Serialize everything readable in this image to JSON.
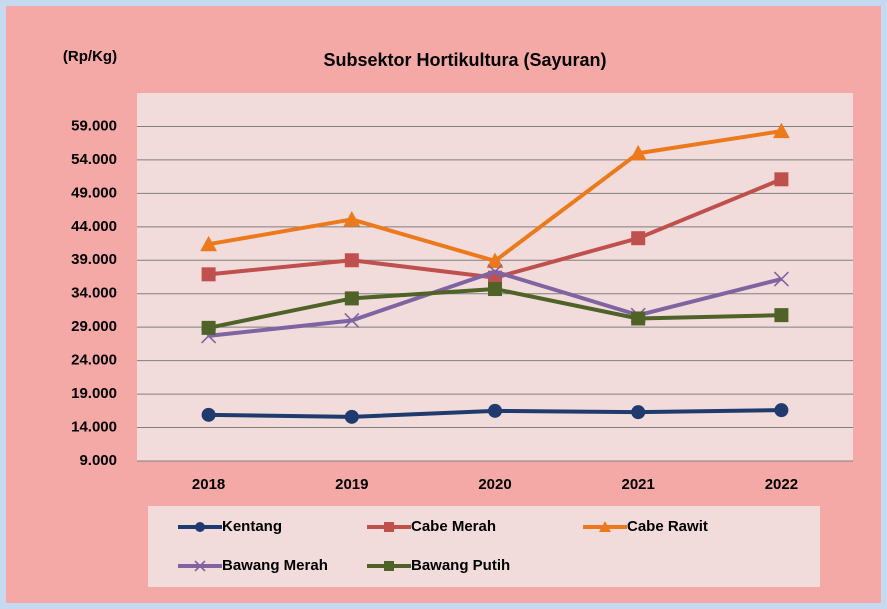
{
  "chart_data": {
    "type": "line",
    "title": "Subsektor Hortikultura (Sayuran)",
    "y_label": "(Rp/Kg)",
    "categories": [
      "2018",
      "2019",
      "2020",
      "2021",
      "2022"
    ],
    "series": [
      {
        "name": "Kentang",
        "color": "#1f3a6e",
        "marker": "circle",
        "values": [
          15900,
          15600,
          16500,
          16300,
          16600
        ]
      },
      {
        "name": "Cabe Merah",
        "color": "#c0504d",
        "marker": "square",
        "values": [
          36900,
          39000,
          36400,
          42300,
          51100
        ]
      },
      {
        "name": "Cabe Rawit",
        "color": "#ec7a1c",
        "marker": "triangle",
        "values": [
          41400,
          45100,
          38900,
          55000,
          58300
        ]
      },
      {
        "name": "Bawang Merah",
        "color": "#8064a2",
        "marker": "x",
        "values": [
          27700,
          30000,
          37300,
          30800,
          36200
        ]
      },
      {
        "name": "Bawang Putih",
        "color": "#4f6228",
        "marker": "square",
        "values": [
          28900,
          33300,
          34700,
          30300,
          30800
        ]
      }
    ],
    "ylim": [
      9000,
      64000
    ],
    "yticks": [
      {
        "value": 9000,
        "label": "9.000"
      },
      {
        "value": 14000,
        "label": "14.000"
      },
      {
        "value": 19000,
        "label": "19.000"
      },
      {
        "value": 24000,
        "label": "24.000"
      },
      {
        "value": 29000,
        "label": "29.000"
      },
      {
        "value": 34000,
        "label": "34.000"
      },
      {
        "value": 39000,
        "label": "39.000"
      },
      {
        "value": 44000,
        "label": "44.000"
      },
      {
        "value": 49000,
        "label": "49.000"
      },
      {
        "value": 54000,
        "label": "54.000"
      },
      {
        "value": 59000,
        "label": "59.000"
      }
    ],
    "grid": true,
    "legend": "bottom"
  }
}
